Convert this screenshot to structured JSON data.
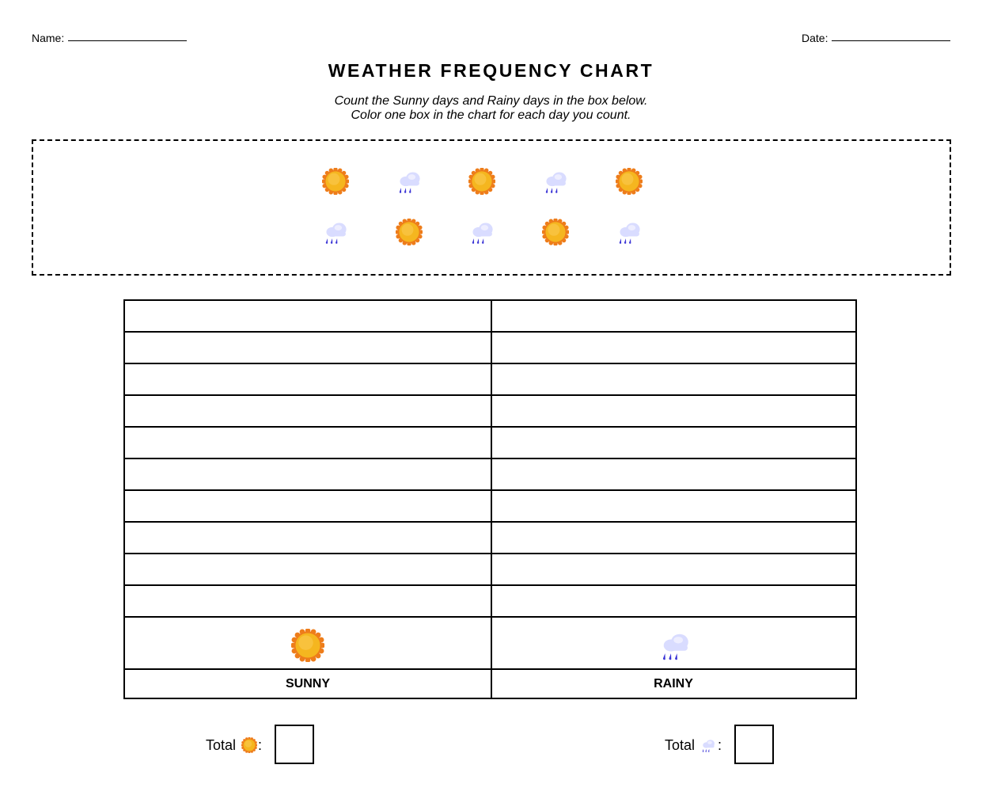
{
  "header": {
    "name_label": "Name:",
    "date_label": "Date:"
  },
  "title": "WEATHER FREQUENCY CHART",
  "instructions": {
    "line1": "Count the Sunny days and Rainy days in the box below.",
    "line2": "Color one box in the chart for each day you count."
  },
  "count_box": {
    "rows": [
      [
        "sun-icon",
        "rain-cloud-icon",
        "sun-icon",
        "rain-cloud-icon",
        "sun-icon"
      ],
      [
        "rain-cloud-icon",
        "sun-icon",
        "rain-cloud-icon",
        "sun-icon",
        "rain-cloud-icon"
      ]
    ]
  },
  "chart": {
    "empty_rows": 10,
    "columns": [
      {
        "label": "SUNNY",
        "icon": "sun-icon"
      },
      {
        "label": "RAINY",
        "icon": "rain-cloud-icon"
      }
    ]
  },
  "totals": {
    "sunny_label": "Total",
    "rainy_label": "Total",
    "colon": ":"
  },
  "colors": {
    "sun_fill": "#f5b61f",
    "sun_rays": "#ee7d1a",
    "cloud": "#d9dcff",
    "rain": "#3a34d6"
  }
}
